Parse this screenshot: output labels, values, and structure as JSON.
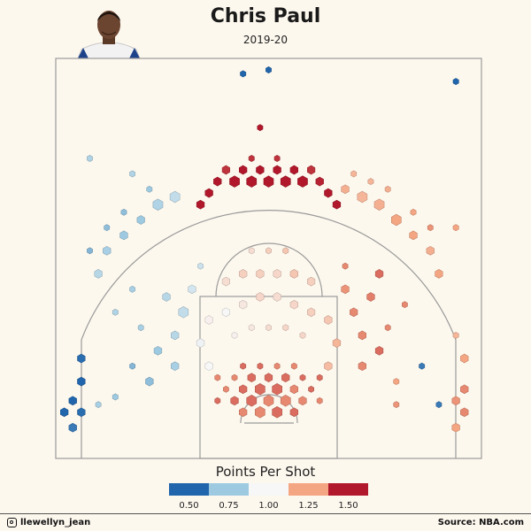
{
  "header": {
    "title": "Chris Paul",
    "subtitle": "2019-20"
  },
  "legend": {
    "title": "Points Per Shot",
    "bins": [
      {
        "label": "0.50",
        "color": "#2166ac"
      },
      {
        "label": "0.75",
        "color": "#9ecae1"
      },
      {
        "label": "1.00",
        "color": "#f7f7f7"
      },
      {
        "label": "1.25",
        "color": "#f4a582"
      },
      {
        "label": "1.50",
        "color": "#b2182b"
      }
    ]
  },
  "footer": {
    "handle": "llewellyn_jean",
    "source": "Source: NBA.com"
  },
  "chart_data": {
    "type": "scatter",
    "subtype": "hexbin-shot-chart",
    "title": "Chris Paul",
    "subtitle": "2019-20",
    "color_metric": "Points Per Shot",
    "color_scale": [
      0.5,
      0.75,
      1.0,
      1.25,
      1.5
    ],
    "xlim": [
      -25,
      25
    ],
    "ylim": [
      -5,
      47
    ],
    "x_unit": "ft from basket center",
    "y_unit": "ft from basket center",
    "points": [
      {
        "x": -1,
        "y": 1,
        "pps": 1.3,
        "size": 3
      },
      {
        "x": 1,
        "y": 1,
        "pps": 1.35,
        "size": 3
      },
      {
        "x": 0,
        "y": 2.5,
        "pps": 1.3,
        "size": 3
      },
      {
        "x": -2,
        "y": 2.5,
        "pps": 1.35,
        "size": 3
      },
      {
        "x": 2,
        "y": 2.5,
        "pps": 1.3,
        "size": 3
      },
      {
        "x": -3,
        "y": 1,
        "pps": 1.3,
        "size": 2
      },
      {
        "x": 3,
        "y": 1,
        "pps": 1.35,
        "size": 2
      },
      {
        "x": -1,
        "y": 4,
        "pps": 1.35,
        "size": 3
      },
      {
        "x": 1,
        "y": 4,
        "pps": 1.35,
        "size": 3
      },
      {
        "x": -3,
        "y": 4,
        "pps": 1.35,
        "size": 2
      },
      {
        "x": 3,
        "y": 4,
        "pps": 1.3,
        "size": 2
      },
      {
        "x": -4,
        "y": 2.5,
        "pps": 1.35,
        "size": 2
      },
      {
        "x": 4,
        "y": 2.5,
        "pps": 1.3,
        "size": 2
      },
      {
        "x": 0,
        "y": 5.5,
        "pps": 1.35,
        "size": 2
      },
      {
        "x": -2,
        "y": 5.5,
        "pps": 1.35,
        "size": 2
      },
      {
        "x": 2,
        "y": 5.5,
        "pps": 1.35,
        "size": 2
      },
      {
        "x": -4,
        "y": 5.5,
        "pps": 1.3,
        "size": 1
      },
      {
        "x": 4,
        "y": 5.5,
        "pps": 1.35,
        "size": 1
      },
      {
        "x": -5,
        "y": 4,
        "pps": 1.3,
        "size": 1
      },
      {
        "x": 5,
        "y": 4,
        "pps": 1.35,
        "size": 1
      },
      {
        "x": -1,
        "y": 7,
        "pps": 1.35,
        "size": 1
      },
      {
        "x": 1,
        "y": 7,
        "pps": 1.3,
        "size": 1
      },
      {
        "x": -3,
        "y": 7,
        "pps": 1.35,
        "size": 1
      },
      {
        "x": 3,
        "y": 7,
        "pps": 1.3,
        "size": 1
      },
      {
        "x": -6,
        "y": 5.5,
        "pps": 1.3,
        "size": 1
      },
      {
        "x": 6,
        "y": 5.5,
        "pps": 1.35,
        "size": 1
      },
      {
        "x": -6,
        "y": 2.5,
        "pps": 1.35,
        "size": 1
      },
      {
        "x": 6,
        "y": 2.5,
        "pps": 1.3,
        "size": 1
      },
      {
        "x": -7,
        "y": 7,
        "pps": 1.0,
        "size": 2
      },
      {
        "x": -8,
        "y": 10,
        "pps": 0.98,
        "size": 2
      },
      {
        "x": -7,
        "y": 13,
        "pps": 1.02,
        "size": 2
      },
      {
        "x": -5,
        "y": 14,
        "pps": 1.0,
        "size": 2
      },
      {
        "x": -3,
        "y": 15,
        "pps": 1.05,
        "size": 2
      },
      {
        "x": -1,
        "y": 16,
        "pps": 1.1,
        "size": 2
      },
      {
        "x": 1,
        "y": 16,
        "pps": 1.08,
        "size": 2
      },
      {
        "x": 3,
        "y": 15,
        "pps": 1.1,
        "size": 2
      },
      {
        "x": 5,
        "y": 14,
        "pps": 1.12,
        "size": 2
      },
      {
        "x": 7,
        "y": 13,
        "pps": 1.15,
        "size": 2
      },
      {
        "x": 8,
        "y": 10,
        "pps": 1.2,
        "size": 2
      },
      {
        "x": 7,
        "y": 7,
        "pps": 1.18,
        "size": 2
      },
      {
        "x": -4,
        "y": 11,
        "pps": 1.02,
        "size": 1
      },
      {
        "x": -2,
        "y": 12,
        "pps": 1.05,
        "size": 1
      },
      {
        "x": 0,
        "y": 12,
        "pps": 1.08,
        "size": 1
      },
      {
        "x": 2,
        "y": 12,
        "pps": 1.1,
        "size": 1
      },
      {
        "x": 4,
        "y": 11,
        "pps": 1.1,
        "size": 1
      },
      {
        "x": -1,
        "y": 19,
        "pps": 1.12,
        "size": 2
      },
      {
        "x": 1,
        "y": 19,
        "pps": 1.1,
        "size": 2
      },
      {
        "x": -3,
        "y": 19,
        "pps": 1.12,
        "size": 2
      },
      {
        "x": 3,
        "y": 19,
        "pps": 1.15,
        "size": 2
      },
      {
        "x": -5,
        "y": 18,
        "pps": 1.08,
        "size": 2
      },
      {
        "x": 5,
        "y": 18,
        "pps": 1.12,
        "size": 2
      },
      {
        "x": 0,
        "y": 22,
        "pps": 1.12,
        "size": 1
      },
      {
        "x": -2,
        "y": 22,
        "pps": 1.08,
        "size": 1
      },
      {
        "x": 2,
        "y": 22,
        "pps": 1.15,
        "size": 1
      },
      {
        "x": -11,
        "y": 7,
        "pps": 0.78,
        "size": 2
      },
      {
        "x": -13,
        "y": 9,
        "pps": 0.75,
        "size": 2
      },
      {
        "x": -11,
        "y": 11,
        "pps": 0.82,
        "size": 2
      },
      {
        "x": -10,
        "y": 14,
        "pps": 0.85,
        "size": 3
      },
      {
        "x": -12,
        "y": 16,
        "pps": 0.82,
        "size": 2
      },
      {
        "x": -9,
        "y": 17,
        "pps": 0.9,
        "size": 2
      },
      {
        "x": -14,
        "y": 5,
        "pps": 0.72,
        "size": 2
      },
      {
        "x": -16,
        "y": 7,
        "pps": 0.7,
        "size": 1
      },
      {
        "x": -15,
        "y": 12,
        "pps": 0.78,
        "size": 1
      },
      {
        "x": -8,
        "y": 20,
        "pps": 0.88,
        "size": 1
      },
      {
        "x": -16,
        "y": 17,
        "pps": 0.78,
        "size": 1
      },
      {
        "x": -18,
        "y": 14,
        "pps": 0.8,
        "size": 1
      },
      {
        "x": 11,
        "y": 7,
        "pps": 1.3,
        "size": 2
      },
      {
        "x": 13,
        "y": 9,
        "pps": 1.35,
        "size": 2
      },
      {
        "x": 11,
        "y": 11,
        "pps": 1.3,
        "size": 2
      },
      {
        "x": 10,
        "y": 14,
        "pps": 1.3,
        "size": 2
      },
      {
        "x": 12,
        "y": 16,
        "pps": 1.32,
        "size": 2
      },
      {
        "x": 9,
        "y": 17,
        "pps": 1.28,
        "size": 2
      },
      {
        "x": 13,
        "y": 19,
        "pps": 1.35,
        "size": 2
      },
      {
        "x": 9,
        "y": 20,
        "pps": 1.3,
        "size": 1
      },
      {
        "x": 15,
        "y": 5,
        "pps": 1.25,
        "size": 1
      },
      {
        "x": 14,
        "y": 12,
        "pps": 1.3,
        "size": 1
      },
      {
        "x": 16,
        "y": 15,
        "pps": 1.3,
        "size": 1
      },
      {
        "x": 15,
        "y": 2,
        "pps": 1.28,
        "size": 1
      },
      {
        "x": -24,
        "y": 1,
        "pps": 0.5,
        "size": 2
      },
      {
        "x": -23,
        "y": 2.5,
        "pps": 0.5,
        "size": 2
      },
      {
        "x": -22,
        "y": 1,
        "pps": 0.52,
        "size": 2
      },
      {
        "x": -23,
        "y": -1,
        "pps": 0.55,
        "size": 2
      },
      {
        "x": -22,
        "y": 5,
        "pps": 0.5,
        "size": 2
      },
      {
        "x": -22,
        "y": 8,
        "pps": 0.52,
        "size": 2
      },
      {
        "x": 23,
        "y": 1,
        "pps": 1.3,
        "size": 2
      },
      {
        "x": 22,
        "y": 2.5,
        "pps": 1.28,
        "size": 2
      },
      {
        "x": 23,
        "y": 4,
        "pps": 1.3,
        "size": 2
      },
      {
        "x": 22,
        "y": -1,
        "pps": 1.25,
        "size": 2
      },
      {
        "x": 23,
        "y": 8,
        "pps": 1.25,
        "size": 2
      },
      {
        "x": 22,
        "y": 11,
        "pps": 1.2,
        "size": 1
      },
      {
        "x": -20,
        "y": 2,
        "pps": 0.78,
        "size": 1
      },
      {
        "x": -18,
        "y": 3,
        "pps": 0.75,
        "size": 1
      },
      {
        "x": 20,
        "y": 2,
        "pps": 0.55,
        "size": 1
      },
      {
        "x": 18,
        "y": 7,
        "pps": 0.55,
        "size": 1
      },
      {
        "x": -20,
        "y": 19,
        "pps": 0.82,
        "size": 2
      },
      {
        "x": -19,
        "y": 22,
        "pps": 0.78,
        "size": 2
      },
      {
        "x": -17,
        "y": 24,
        "pps": 0.75,
        "size": 2
      },
      {
        "x": -15,
        "y": 26,
        "pps": 0.75,
        "size": 2
      },
      {
        "x": -13,
        "y": 28,
        "pps": 0.8,
        "size": 3
      },
      {
        "x": -11,
        "y": 29,
        "pps": 0.85,
        "size": 3
      },
      {
        "x": -14,
        "y": 30,
        "pps": 0.75,
        "size": 1
      },
      {
        "x": -17,
        "y": 27,
        "pps": 0.72,
        "size": 1
      },
      {
        "x": -19,
        "y": 25,
        "pps": 0.72,
        "size": 1
      },
      {
        "x": -21,
        "y": 22,
        "pps": 0.7,
        "size": 1
      },
      {
        "x": -16,
        "y": 32,
        "pps": 0.8,
        "size": 1
      },
      {
        "x": -21,
        "y": 34,
        "pps": 0.8,
        "size": 1
      },
      {
        "x": -6,
        "y": 31,
        "pps": 1.5,
        "size": 2
      },
      {
        "x": -4,
        "y": 31,
        "pps": 1.5,
        "size": 3
      },
      {
        "x": -2,
        "y": 31,
        "pps": 1.55,
        "size": 3
      },
      {
        "x": 0,
        "y": 31,
        "pps": 1.5,
        "size": 3
      },
      {
        "x": 2,
        "y": 31,
        "pps": 1.55,
        "size": 3
      },
      {
        "x": 4,
        "y": 31,
        "pps": 1.5,
        "size": 3
      },
      {
        "x": 6,
        "y": 31,
        "pps": 1.48,
        "size": 2
      },
      {
        "x": -5,
        "y": 32.5,
        "pps": 1.45,
        "size": 2
      },
      {
        "x": -3,
        "y": 32.5,
        "pps": 1.5,
        "size": 2
      },
      {
        "x": -1,
        "y": 32.5,
        "pps": 1.5,
        "size": 2
      },
      {
        "x": 1,
        "y": 32.5,
        "pps": 1.55,
        "size": 2
      },
      {
        "x": 3,
        "y": 32.5,
        "pps": 1.5,
        "size": 2
      },
      {
        "x": 5,
        "y": 32.5,
        "pps": 1.45,
        "size": 2
      },
      {
        "x": -7,
        "y": 29.5,
        "pps": 1.5,
        "size": 2
      },
      {
        "x": 7,
        "y": 29.5,
        "pps": 1.52,
        "size": 2
      },
      {
        "x": -8,
        "y": 28,
        "pps": 1.5,
        "size": 2
      },
      {
        "x": 8,
        "y": 28,
        "pps": 1.5,
        "size": 2
      },
      {
        "x": -2,
        "y": 34,
        "pps": 1.45,
        "size": 1
      },
      {
        "x": 1,
        "y": 34,
        "pps": 1.45,
        "size": 1
      },
      {
        "x": -1,
        "y": 38,
        "pps": 1.5,
        "size": 1
      },
      {
        "x": 9,
        "y": 30,
        "pps": 1.22,
        "size": 2
      },
      {
        "x": 11,
        "y": 29,
        "pps": 1.2,
        "size": 3
      },
      {
        "x": 13,
        "y": 28,
        "pps": 1.22,
        "size": 3
      },
      {
        "x": 15,
        "y": 26,
        "pps": 1.25,
        "size": 3
      },
      {
        "x": 17,
        "y": 24,
        "pps": 1.25,
        "size": 2
      },
      {
        "x": 19,
        "y": 22,
        "pps": 1.22,
        "size": 2
      },
      {
        "x": 20,
        "y": 19,
        "pps": 1.25,
        "size": 2
      },
      {
        "x": 12,
        "y": 31,
        "pps": 1.2,
        "size": 1
      },
      {
        "x": 14,
        "y": 30,
        "pps": 1.22,
        "size": 1
      },
      {
        "x": 17,
        "y": 27,
        "pps": 1.25,
        "size": 1
      },
      {
        "x": 19,
        "y": 25,
        "pps": 1.28,
        "size": 1
      },
      {
        "x": 10,
        "y": 32,
        "pps": 1.2,
        "size": 1
      },
      {
        "x": 22,
        "y": 25,
        "pps": 1.25,
        "size": 1
      },
      {
        "x": -3,
        "y": 45,
        "pps": 0.5,
        "size": 1
      },
      {
        "x": 0,
        "y": 45.5,
        "pps": 0.5,
        "size": 1
      },
      {
        "x": 22,
        "y": 44,
        "pps": 0.5,
        "size": 1
      }
    ]
  }
}
